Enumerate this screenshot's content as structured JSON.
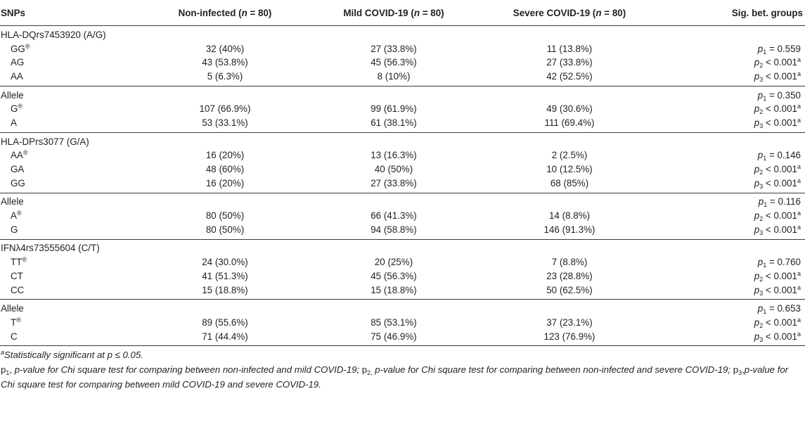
{
  "header": {
    "snps": "SNPs",
    "non_infected": "Non-infected (",
    "mild": "Mild COVID-19 (",
    "severe": "Severe COVID-19 (",
    "n_letter": "n",
    "n_value": " = 80)",
    "sig": "Sig. bet. groups"
  },
  "blocks": [
    {
      "title": "HLA-DQrs7453920 (A/G)",
      "rows": [
        {
          "label": "GG",
          "ref": "®",
          "non_infected": "32 (40%)",
          "mild": "27 (33.8%)",
          "severe": "11 (13.8%)",
          "p_sub": "1",
          "p_op": " = ",
          "p_val": "0.559",
          "p_sup": ""
        },
        {
          "label": "AG",
          "ref": "",
          "non_infected": "43 (53.8%)",
          "mild": "45 (56.3%)",
          "severe": "27 (33.8%)",
          "p_sub": "2",
          "p_op": " < ",
          "p_val": "0.001",
          "p_sup": "a"
        },
        {
          "label": "AA",
          "ref": "",
          "non_infected": "5 (6.3%)",
          "mild": "8 (10%)",
          "severe": "42 (52.5%)",
          "p_sub": "3",
          "p_op": " < ",
          "p_val": "0.001",
          "p_sup": "a"
        }
      ]
    },
    {
      "title": "Allele",
      "title_p": {
        "p_sub": "1",
        "p_op": " = ",
        "p_val": "0.350",
        "p_sup": ""
      },
      "rows": [
        {
          "label": "G",
          "ref": "®",
          "non_infected": "107 (66.9%)",
          "mild": "99 (61.9%)",
          "severe": "49 (30.6%)",
          "p_sub": "2",
          "p_op": " < ",
          "p_val": "0.001",
          "p_sup": "a"
        },
        {
          "label": "A",
          "ref": "",
          "non_infected": "53 (33.1%)",
          "mild": "61 (38.1%)",
          "severe": "111 (69.4%)",
          "p_sub": "3",
          "p_op": " < ",
          "p_val": "0.001",
          "p_sup": "a"
        }
      ]
    },
    {
      "title": "HLA-DPrs3077 (G/A)",
      "rows": [
        {
          "label": "AA",
          "ref": "®",
          "non_infected": "16 (20%)",
          "mild": "13 (16.3%)",
          "severe": "2 (2.5%)",
          "p_sub": "1",
          "p_op": " = ",
          "p_val": "0.146",
          "p_sup": ""
        },
        {
          "label": "GA",
          "ref": "",
          "non_infected": "48 (60%)",
          "mild": "40 (50%)",
          "severe": "10 (12.5%)",
          "p_sub": "2",
          "p_op": " < ",
          "p_val": "0.001",
          "p_sup": "a"
        },
        {
          "label": "GG",
          "ref": "",
          "non_infected": "16 (20%)",
          "mild": "27 (33.8%)",
          "severe": "68 (85%)",
          "p_sub": "3",
          "p_op": " < ",
          "p_val": "0.001",
          "p_sup": "a"
        }
      ]
    },
    {
      "title": "Allele",
      "title_p": {
        "p_sub": "1",
        "p_op": " = ",
        "p_val": "0.116",
        "p_sup": ""
      },
      "rows": [
        {
          "label": "A",
          "ref": "®",
          "non_infected": "80 (50%)",
          "mild": "66 (41.3%)",
          "severe": "14 (8.8%)",
          "p_sub": "2",
          "p_op": " < ",
          "p_val": "0.001",
          "p_sup": "a"
        },
        {
          "label": "G",
          "ref": "",
          "non_infected": "80 (50%)",
          "mild": "94 (58.8%)",
          "severe": "146 (91.3%)",
          "p_sub": "3",
          "p_op": " < ",
          "p_val": "0.001",
          "p_sup": "a"
        }
      ]
    },
    {
      "title": "IFNλ4rs73555604 (C/T)",
      "rows": [
        {
          "label": "TT",
          "ref": "®",
          "non_infected": "24 (30.0%)",
          "mild": "20 (25%)",
          "severe": "7 (8.8%)",
          "p_sub": "1",
          "p_op": " = ",
          "p_val": "0.760",
          "p_sup": ""
        },
        {
          "label": "CT",
          "ref": "",
          "non_infected": "41 (51.3%)",
          "mild": "45 (56.3%)",
          "severe": "23 (28.8%)",
          "p_sub": "2",
          "p_op": " < ",
          "p_val": "0.001",
          "p_sup": "a"
        },
        {
          "label": "CC",
          "ref": "",
          "non_infected": "15 (18.8%)",
          "mild": "15 (18.8%)",
          "severe": "50 (62.5%)",
          "p_sub": "3",
          "p_op": " < ",
          "p_val": "0.001",
          "p_sup": "a"
        }
      ]
    },
    {
      "title": "Allele",
      "title_p": {
        "p_sub": "1",
        "p_op": " = ",
        "p_val": "0.653",
        "p_sup": ""
      },
      "rows": [
        {
          "label": "T",
          "ref": "®",
          "non_infected": "89 (55.6%)",
          "mild": "85 (53.1%)",
          "severe": "37 (23.1%)",
          "p_sub": "2",
          "p_op": " < ",
          "p_val": "0.001",
          "p_sup": "a"
        },
        {
          "label": "C",
          "ref": "",
          "non_infected": "71 (44.4%)",
          "mild": "75 (46.9%)",
          "severe": "123 (76.9%)",
          "p_sub": "3",
          "p_op": " < ",
          "p_val": "0.001",
          "p_sup": "a"
        }
      ]
    }
  ],
  "p_letter": "p",
  "footnotes": {
    "sig_sup": "a",
    "sig_text": "Statistically significant at p ≤ 0.05.",
    "legend": [
      {
        "p": "p",
        "sub": "1",
        "sep": ", ",
        "text": "p-value for Chi square test for comparing between non-infected and mild COVID-19;"
      },
      {
        "p": " p",
        "sub": "2,",
        "sep": " ",
        "text": "p-value for Chi square test for comparing between non-infected and severe COVID-19;"
      },
      {
        "p": " p",
        "sub": "3",
        "sep": ",",
        "text": "p-value for Chi square test for comparing between mild COVID-19 and severe COVID-19."
      }
    ]
  }
}
